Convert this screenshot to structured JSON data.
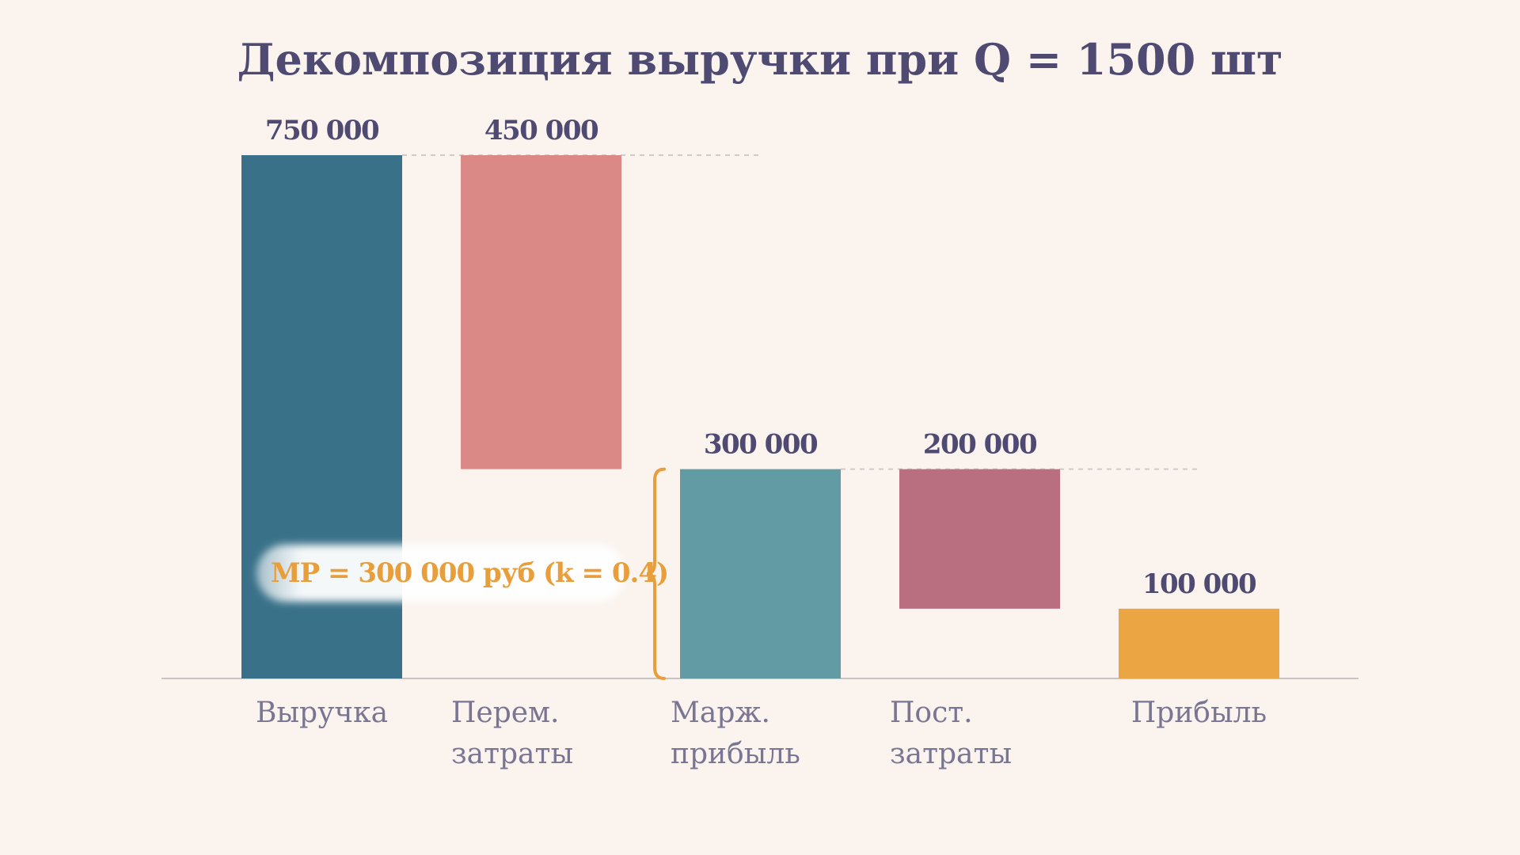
{
  "chart_data": {
    "type": "bar",
    "subtype": "waterfall",
    "title": "Декомпозиция выручки при Q = 1500 шт",
    "xlabel": "",
    "ylabel": "",
    "ylim": [
      0,
      750000
    ],
    "grid": false,
    "legend": "none",
    "bars": [
      {
        "category": [
          "Выручка"
        ],
        "value": 750000,
        "base": 0,
        "label": "750 000",
        "color": "#397189"
      },
      {
        "category": [
          "Перем.",
          "затраты"
        ],
        "value": 450000,
        "base": 300000,
        "label": "450 000",
        "color": "#db8986"
      },
      {
        "category": [
          "Марж.",
          "прибыль"
        ],
        "value": 300000,
        "base": 0,
        "label": "300 000",
        "color": "#629ba4"
      },
      {
        "category": [
          "Пост.",
          "затраты"
        ],
        "value": 200000,
        "base": 100000,
        "label": "200 000",
        "color": "#ba6f80"
      },
      {
        "category": [
          "Прибыль"
        ],
        "value": 100000,
        "base": 0,
        "label": "100 000",
        "color": "#eba543"
      }
    ],
    "connectors": [
      {
        "from": 0,
        "to": 1,
        "y": 750000
      },
      {
        "from": 2,
        "to": 3,
        "y": 300000
      }
    ],
    "annotation": {
      "text": "МР = 300 000 руб (k = 0.4)",
      "bar": 2,
      "range": [
        0,
        300000
      ],
      "color": "#e89e3a"
    }
  },
  "colors": {
    "background": "#faf3ee",
    "text": "#4f4a72",
    "category_text": "#7a7592",
    "axis": "#c9c4c4",
    "connector": "#cfcaca"
  }
}
